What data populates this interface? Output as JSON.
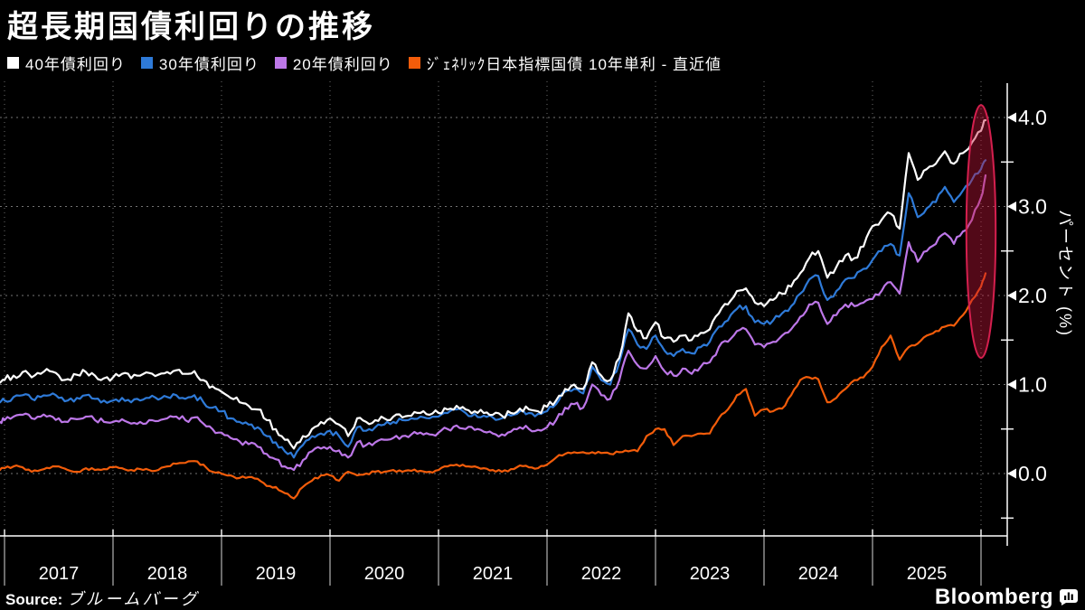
{
  "title": "超長期国債利回りの推移",
  "legend": {
    "items": [
      {
        "label": "40年債利回り",
        "color": "#ffffff"
      },
      {
        "label": "30年債利回り",
        "color": "#2e7ad8"
      },
      {
        "label": "20年債利回り",
        "color": "#bd77e8"
      },
      {
        "label": "ｼﾞｪﾈﾘｯｸ日本指標国債 10年単利 - 直近値",
        "color": "#f25c0a"
      }
    ]
  },
  "y_axis": {
    "unit_label": "パーセント (%)",
    "tick_values": [
      0,
      1,
      2,
      3,
      4
    ],
    "tick_labels": [
      "0.0",
      "1.0",
      "2.0",
      "3.0",
      "4.0"
    ],
    "minor_tick_values": [
      -0.5,
      0.5,
      1.5,
      2.5,
      3.5
    ]
  },
  "x_axis": {
    "year_labels": [
      "2017",
      "2018",
      "2019",
      "2020",
      "2021",
      "2022",
      "2023",
      "2024",
      "2025"
    ],
    "gridline_years": [
      2017,
      2018,
      2019,
      2020,
      2021,
      2022,
      2023,
      2024,
      2025,
      2026
    ]
  },
  "source": {
    "prefix": "Source:",
    "text": "ブルームバーグ"
  },
  "branding": {
    "logo_text": "Bloomberg",
    "logo_icon": "bar-chart-bubble-icon"
  },
  "annotation": {
    "shape": "ellipse-highlight",
    "stroke_color": "#d41f4e",
    "fill_color": "rgba(196,22,58,0.42)"
  },
  "chart_data": {
    "type": "line",
    "title": "超長期国債利回りの推移",
    "ylabel": "パーセント (%)",
    "ylim": [
      -0.65,
      4.4
    ],
    "grid": "dotted",
    "legend_position": "top",
    "x_years": [
      2016.958,
      2017.0,
      2017.083,
      2017.167,
      2017.25,
      2017.333,
      2017.417,
      2017.5,
      2017.583,
      2017.667,
      2017.75,
      2017.833,
      2017.917,
      2018.0,
      2018.083,
      2018.167,
      2018.25,
      2018.333,
      2018.417,
      2018.5,
      2018.583,
      2018.667,
      2018.75,
      2018.833,
      2018.917,
      2019.0,
      2019.083,
      2019.167,
      2019.25,
      2019.333,
      2019.417,
      2019.5,
      2019.583,
      2019.667,
      2019.75,
      2019.833,
      2019.917,
      2020.0,
      2020.083,
      2020.167,
      2020.25,
      2020.333,
      2020.417,
      2020.5,
      2020.583,
      2020.667,
      2020.75,
      2020.833,
      2020.917,
      2021.0,
      2021.083,
      2021.167,
      2021.25,
      2021.333,
      2021.417,
      2021.5,
      2021.583,
      2021.667,
      2021.75,
      2021.833,
      2021.917,
      2022.0,
      2022.083,
      2022.167,
      2022.25,
      2022.333,
      2022.417,
      2022.5,
      2022.583,
      2022.667,
      2022.75,
      2022.833,
      2022.917,
      2023.0,
      2023.083,
      2023.167,
      2023.25,
      2023.333,
      2023.417,
      2023.5,
      2023.583,
      2023.667,
      2023.75,
      2023.833,
      2023.917,
      2024.0,
      2024.083,
      2024.167,
      2024.25,
      2024.333,
      2024.417,
      2024.5,
      2024.583,
      2024.667,
      2024.75,
      2024.833,
      2024.917,
      2025.0,
      2025.083,
      2025.167,
      2025.25,
      2025.333,
      2025.417,
      2025.5,
      2025.583,
      2025.667,
      2025.75,
      2025.833,
      2025.917,
      2026.0,
      2026.042
    ],
    "series": [
      {
        "name": "40年債利回り",
        "color": "#ffffff",
        "values": [
          1.02,
          1.05,
          1.1,
          1.14,
          1.08,
          1.12,
          1.15,
          1.1,
          1.06,
          1.11,
          1.14,
          1.1,
          1.07,
          1.08,
          1.12,
          1.07,
          1.1,
          1.13,
          1.11,
          1.14,
          1.16,
          1.12,
          1.15,
          1.05,
          0.98,
          0.92,
          0.85,
          0.8,
          0.76,
          0.72,
          0.6,
          0.5,
          0.38,
          0.28,
          0.42,
          0.5,
          0.58,
          0.62,
          0.55,
          0.42,
          0.62,
          0.58,
          0.6,
          0.62,
          0.64,
          0.63,
          0.65,
          0.68,
          0.66,
          0.68,
          0.72,
          0.76,
          0.72,
          0.7,
          0.68,
          0.66,
          0.65,
          0.68,
          0.73,
          0.72,
          0.7,
          0.75,
          0.82,
          0.95,
          1.0,
          0.95,
          1.25,
          1.1,
          1.05,
          1.3,
          1.8,
          1.6,
          1.52,
          1.7,
          1.52,
          1.48,
          1.55,
          1.5,
          1.58,
          1.62,
          1.8,
          1.9,
          2.05,
          2.08,
          1.92,
          1.88,
          1.95,
          2.02,
          2.1,
          2.25,
          2.42,
          2.5,
          2.2,
          2.32,
          2.45,
          2.42,
          2.55,
          2.78,
          2.85,
          2.92,
          2.75,
          3.6,
          3.3,
          3.42,
          3.48,
          3.62,
          3.48,
          3.6,
          3.72,
          3.85,
          3.97
        ]
      },
      {
        "name": "30年債利回り",
        "color": "#2e7ad8",
        "values": [
          0.8,
          0.82,
          0.86,
          0.88,
          0.84,
          0.86,
          0.88,
          0.85,
          0.82,
          0.85,
          0.88,
          0.84,
          0.82,
          0.82,
          0.85,
          0.8,
          0.82,
          0.85,
          0.83,
          0.86,
          0.88,
          0.84,
          0.88,
          0.8,
          0.74,
          0.7,
          0.62,
          0.58,
          0.55,
          0.52,
          0.42,
          0.35,
          0.25,
          0.18,
          0.32,
          0.42,
          0.45,
          0.48,
          0.42,
          0.3,
          0.52,
          0.48,
          0.52,
          0.55,
          0.58,
          0.6,
          0.62,
          0.64,
          0.62,
          0.64,
          0.68,
          0.72,
          0.68,
          0.67,
          0.65,
          0.63,
          0.62,
          0.65,
          0.7,
          0.68,
          0.67,
          0.7,
          0.78,
          0.92,
          0.95,
          0.9,
          1.2,
          1.05,
          1.0,
          1.25,
          1.62,
          1.45,
          1.4,
          1.55,
          1.38,
          1.32,
          1.4,
          1.35,
          1.42,
          1.48,
          1.65,
          1.72,
          1.85,
          1.88,
          1.7,
          1.68,
          1.72,
          1.8,
          1.88,
          2.02,
          2.18,
          2.22,
          1.95,
          2.05,
          2.18,
          2.2,
          2.3,
          2.4,
          2.5,
          2.58,
          2.45,
          3.15,
          2.88,
          2.98,
          3.05,
          3.22,
          3.05,
          3.18,
          3.3,
          3.42,
          3.52
        ]
      },
      {
        "name": "20年債利回り",
        "color": "#bd77e8",
        "values": [
          0.58,
          0.6,
          0.64,
          0.66,
          0.62,
          0.64,
          0.65,
          0.62,
          0.58,
          0.61,
          0.64,
          0.6,
          0.58,
          0.58,
          0.61,
          0.56,
          0.58,
          0.6,
          0.59,
          0.62,
          0.64,
          0.6,
          0.63,
          0.56,
          0.5,
          0.46,
          0.4,
          0.36,
          0.33,
          0.3,
          0.22,
          0.16,
          0.08,
          0.04,
          0.15,
          0.25,
          0.28,
          0.3,
          0.26,
          0.18,
          0.35,
          0.32,
          0.35,
          0.38,
          0.4,
          0.42,
          0.44,
          0.46,
          0.44,
          0.46,
          0.5,
          0.54,
          0.5,
          0.49,
          0.47,
          0.45,
          0.44,
          0.47,
          0.52,
          0.5,
          0.49,
          0.52,
          0.6,
          0.74,
          0.78,
          0.74,
          1.0,
          0.88,
          0.84,
          1.05,
          1.38,
          1.22,
          1.18,
          1.32,
          1.15,
          1.1,
          1.18,
          1.12,
          1.2,
          1.25,
          1.42,
          1.48,
          1.6,
          1.62,
          1.45,
          1.42,
          1.48,
          1.55,
          1.62,
          1.76,
          1.9,
          1.92,
          1.68,
          1.78,
          1.9,
          1.88,
          1.92,
          1.96,
          2.05,
          2.15,
          2.02,
          2.6,
          2.38,
          2.5,
          2.58,
          2.7,
          2.58,
          2.72,
          2.85,
          3.1,
          3.35
        ]
      },
      {
        "name": "ｼﾞｪﾈﾘｯｸ日本指標国債 10年単利 - 直近値",
        "color": "#f25c0a",
        "values": [
          0.04,
          0.06,
          0.08,
          0.07,
          0.02,
          0.04,
          0.06,
          0.08,
          0.04,
          0.02,
          0.06,
          0.04,
          0.05,
          0.07,
          0.06,
          0.04,
          0.05,
          0.04,
          0.04,
          0.08,
          0.11,
          0.12,
          0.14,
          0.1,
          0.02,
          0.0,
          -0.02,
          -0.05,
          -0.04,
          -0.06,
          -0.14,
          -0.15,
          -0.22,
          -0.28,
          -0.15,
          -0.08,
          -0.02,
          -0.02,
          -0.08,
          0.02,
          -0.02,
          0.0,
          0.02,
          0.02,
          0.04,
          0.02,
          0.03,
          0.03,
          0.02,
          0.04,
          0.08,
          0.1,
          0.08,
          0.08,
          0.06,
          0.04,
          0.02,
          0.05,
          0.09,
          0.07,
          0.06,
          0.1,
          0.18,
          0.22,
          0.24,
          0.24,
          0.24,
          0.23,
          0.22,
          0.24,
          0.25,
          0.25,
          0.42,
          0.5,
          0.5,
          0.32,
          0.42,
          0.42,
          0.45,
          0.45,
          0.62,
          0.72,
          0.88,
          0.95,
          0.65,
          0.72,
          0.7,
          0.73,
          0.88,
          1.05,
          1.08,
          1.06,
          0.8,
          0.85,
          0.95,
          1.05,
          1.08,
          1.2,
          1.42,
          1.55,
          1.28,
          1.42,
          1.46,
          1.55,
          1.6,
          1.65,
          1.66,
          1.78,
          1.95,
          2.1,
          2.25
        ]
      }
    ],
    "highlight_ellipse": {
      "x_center_year": 2026.0,
      "y_center_pct": 2.72,
      "x_radius_years": 0.135,
      "y_radius_pct": 1.42
    }
  }
}
